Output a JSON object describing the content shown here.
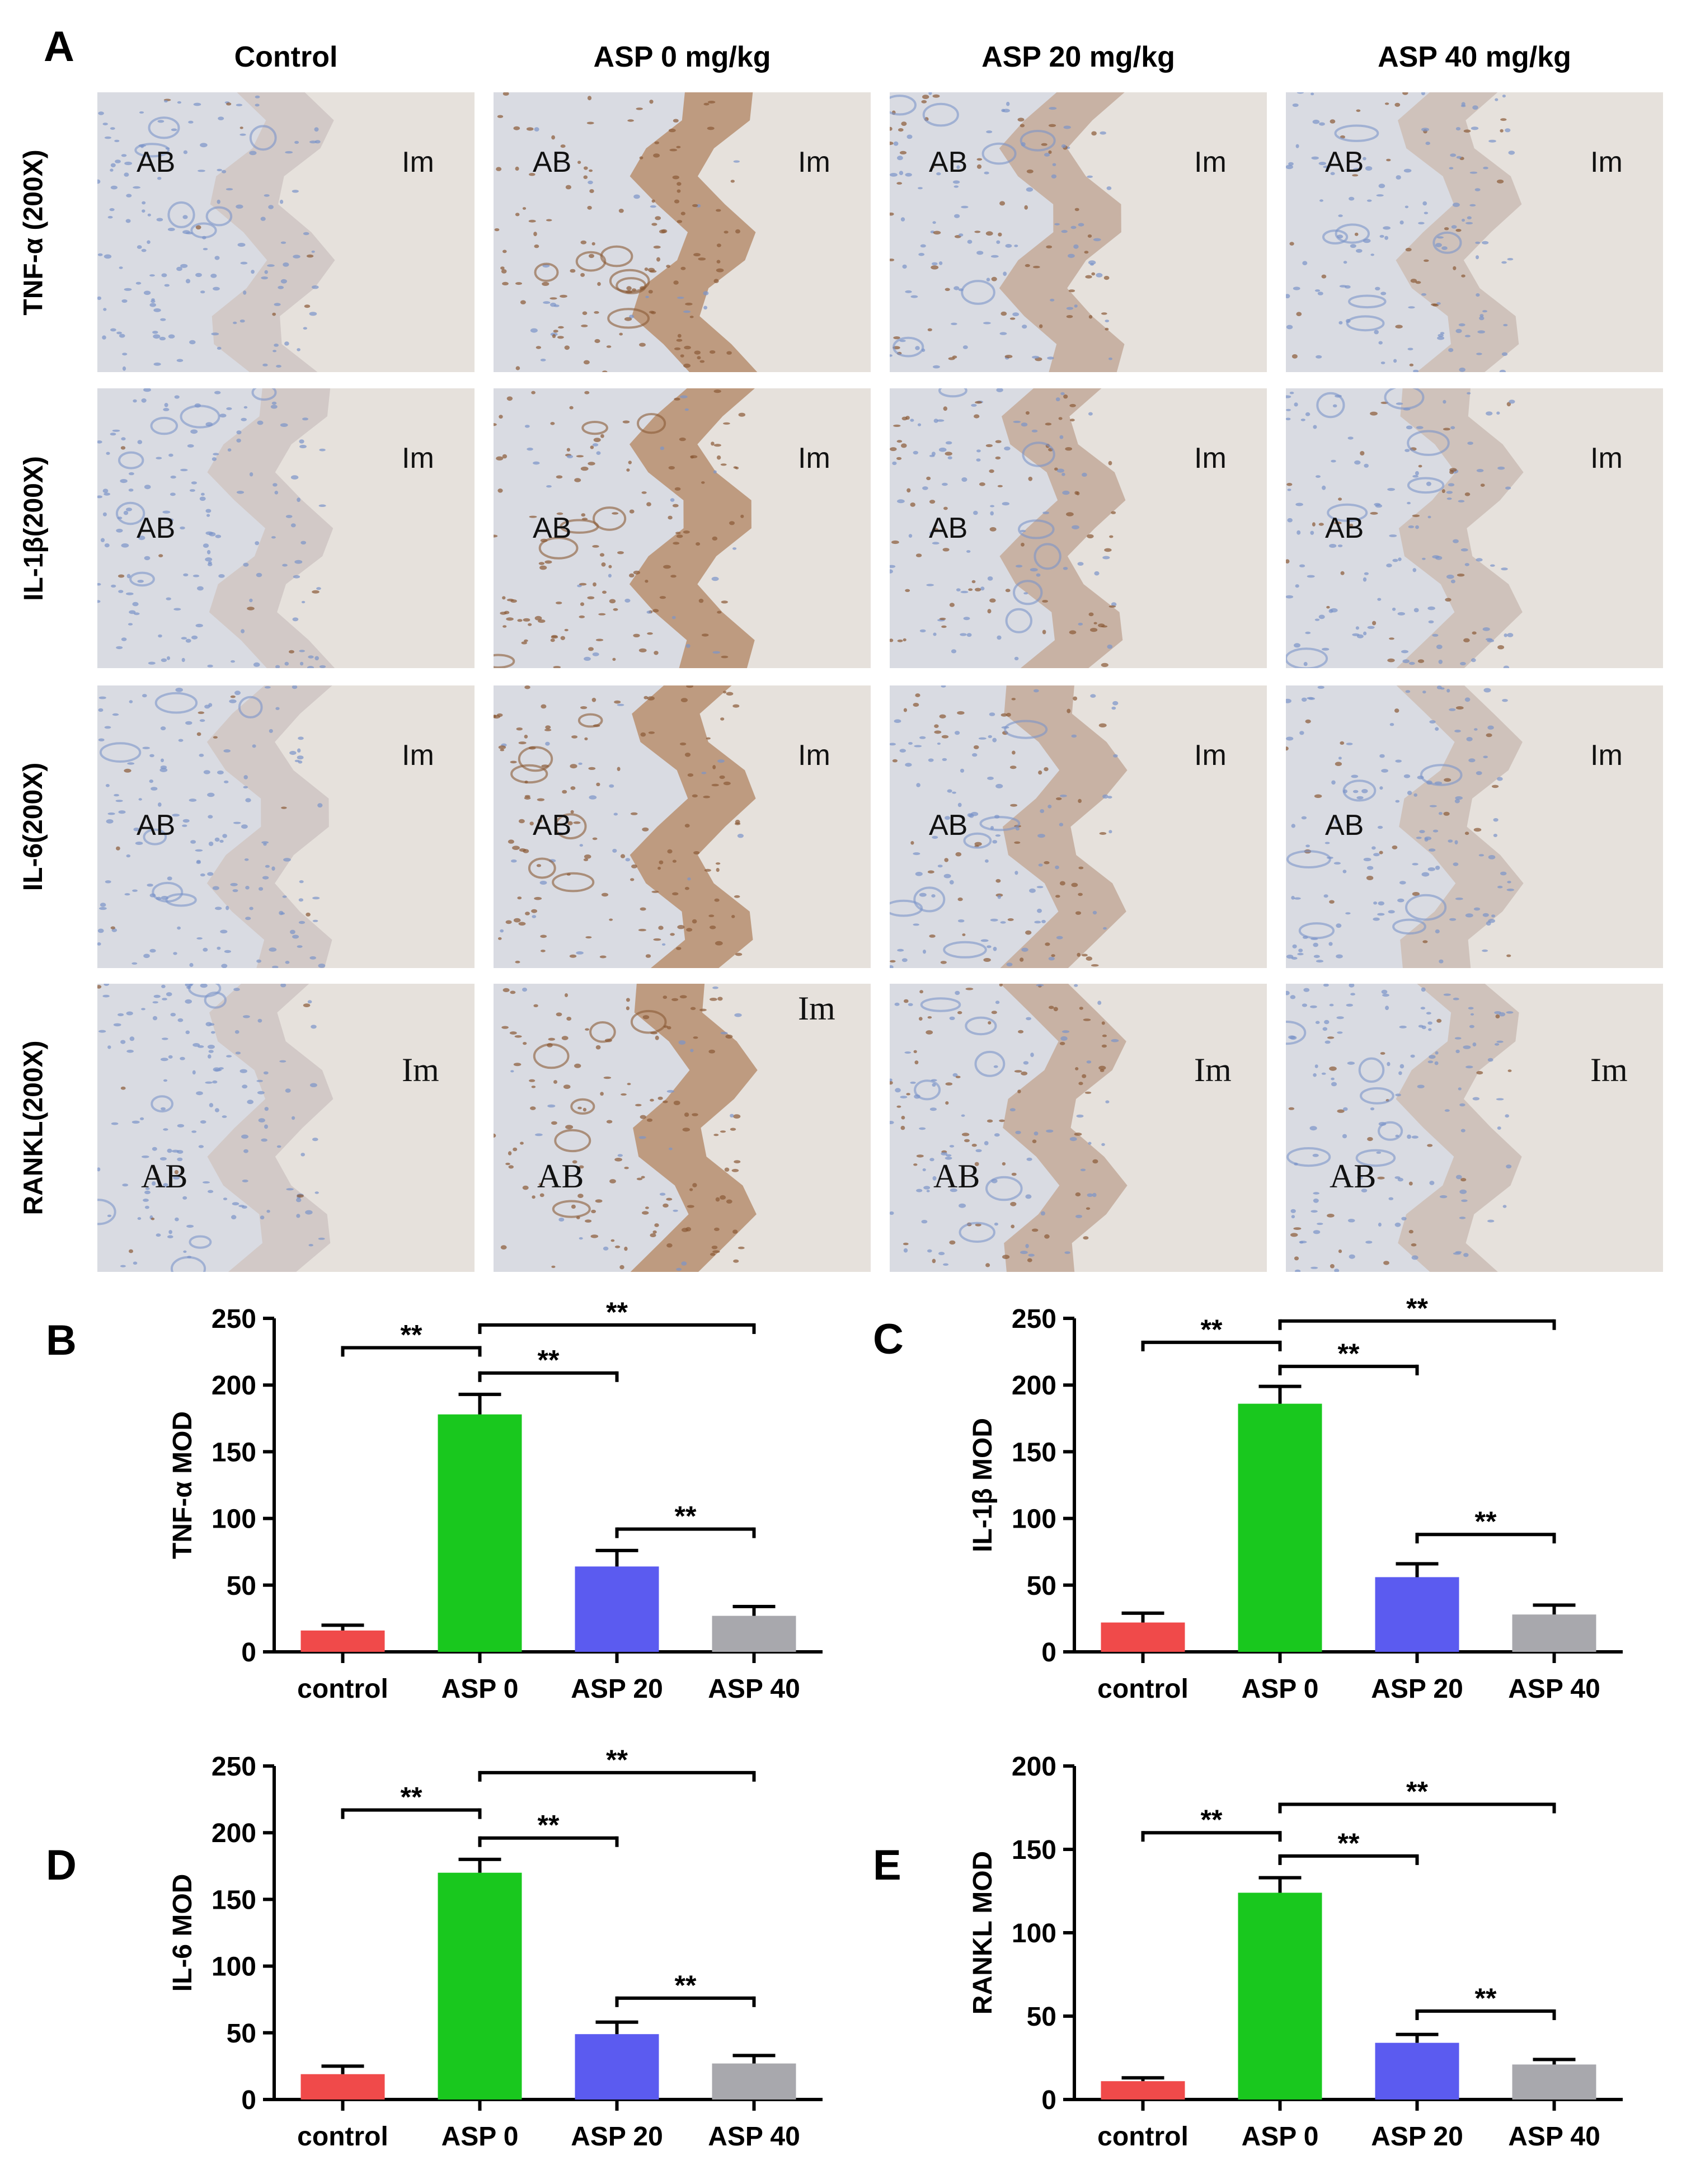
{
  "figure": {
    "panel_labels": [
      "A",
      "B",
      "C",
      "D",
      "E"
    ],
    "columns": [
      "Control",
      "ASP 0 mg/kg",
      "ASP 20 mg/kg",
      "ASP 40 mg/kg"
    ],
    "rows": [
      "TNF-α (200X)",
      "IL-1β(200X)",
      "IL-6(200X)",
      "RANKL(200X)"
    ],
    "region_labels": {
      "bone": "AB",
      "implant": "Im"
    }
  },
  "colors": {
    "control": "#f04a4a",
    "asp0": "#19c81e",
    "asp20": "#5b5bf0",
    "asp40": "#a8a8ad",
    "stain_brown": "#b07a4e",
    "hematoxylin_blue": "#7b94c9",
    "tissue_background": "#d9dbe2",
    "implant_background": "#e6e1dc"
  },
  "chart_data": [
    {
      "type": "bar",
      "panel": "B",
      "categories": [
        "control",
        "ASP 0",
        "ASP 20",
        "ASP 40"
      ],
      "values": [
        16,
        178,
        64,
        27
      ],
      "errors": [
        4,
        15,
        12,
        7
      ],
      "ylabel": "TNF-α MOD",
      "ylim": [
        0,
        250
      ],
      "yticks": [
        0,
        50,
        100,
        150,
        200,
        250
      ],
      "significance": [
        {
          "from": 0,
          "to": 1,
          "label": "**",
          "y": 228
        },
        {
          "from": 1,
          "to": 3,
          "label": "**",
          "y": 245
        },
        {
          "from": 1,
          "to": 2,
          "label": "**",
          "y": 209
        },
        {
          "from": 2,
          "to": 3,
          "label": "**",
          "y": 92
        }
      ]
    },
    {
      "type": "bar",
      "panel": "C",
      "categories": [
        "control",
        "ASP 0",
        "ASP 20",
        "ASP 40"
      ],
      "values": [
        22,
        186,
        56,
        28
      ],
      "errors": [
        7,
        13,
        10,
        7
      ],
      "ylabel": "IL-1β MOD",
      "ylim": [
        0,
        250
      ],
      "yticks": [
        0,
        50,
        100,
        150,
        200,
        250
      ],
      "significance": [
        {
          "from": 0,
          "to": 1,
          "label": "**",
          "y": 232
        },
        {
          "from": 1,
          "to": 3,
          "label": "**",
          "y": 248
        },
        {
          "from": 1,
          "to": 2,
          "label": "**",
          "y": 214
        },
        {
          "from": 2,
          "to": 3,
          "label": "**",
          "y": 88
        }
      ]
    },
    {
      "type": "bar",
      "panel": "D",
      "categories": [
        "control",
        "ASP 0",
        "ASP 20",
        "ASP 40"
      ],
      "values": [
        19,
        170,
        49,
        27
      ],
      "errors": [
        6,
        10,
        9,
        6
      ],
      "ylabel": "IL-6 MOD",
      "ylim": [
        0,
        250
      ],
      "yticks": [
        0,
        50,
        100,
        150,
        200,
        250
      ],
      "significance": [
        {
          "from": 0,
          "to": 1,
          "label": "**",
          "y": 217
        },
        {
          "from": 1,
          "to": 3,
          "label": "**",
          "y": 245
        },
        {
          "from": 1,
          "to": 2,
          "label": "**",
          "y": 196
        },
        {
          "from": 2,
          "to": 3,
          "label": "**",
          "y": 76
        }
      ]
    },
    {
      "type": "bar",
      "panel": "E",
      "categories": [
        "control",
        "ASP 0",
        "ASP 20",
        "ASP 40"
      ],
      "values": [
        11,
        124,
        34,
        21
      ],
      "errors": [
        2,
        9,
        5,
        3
      ],
      "ylabel": "RANKL MOD",
      "ylim": [
        0,
        200
      ],
      "yticks": [
        0,
        50,
        100,
        150,
        200
      ],
      "significance": [
        {
          "from": 0,
          "to": 1,
          "label": "**",
          "y": 160
        },
        {
          "from": 1,
          "to": 3,
          "label": "**",
          "y": 177
        },
        {
          "from": 1,
          "to": 2,
          "label": "**",
          "y": 146
        },
        {
          "from": 2,
          "to": 3,
          "label": "**",
          "y": 53
        }
      ]
    }
  ]
}
